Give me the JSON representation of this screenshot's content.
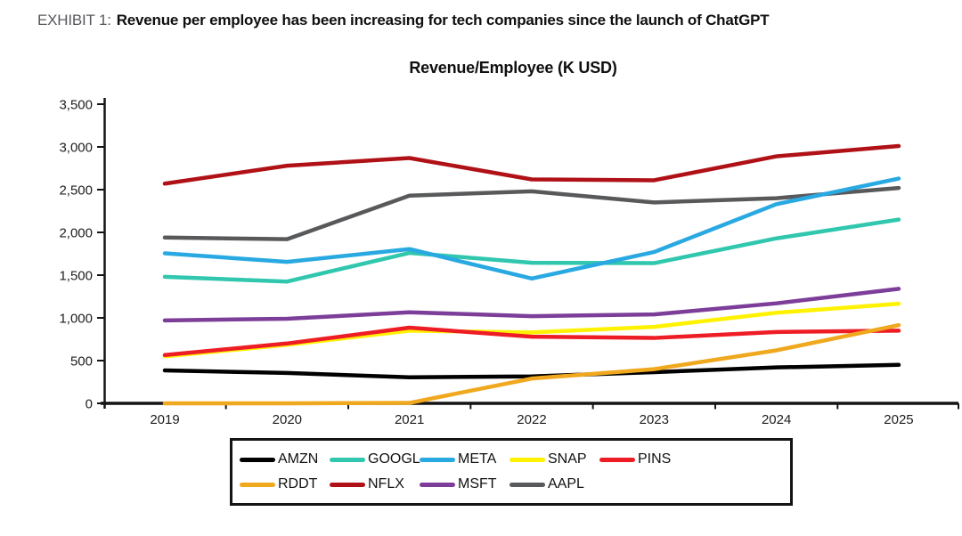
{
  "exhibit": {
    "label": "EXHIBIT 1:",
    "title": "Revenue per employee has been increasing for tech companies since the launch of ChatGPT"
  },
  "chart_data": {
    "type": "line",
    "title": "Revenue/Employee (K USD)",
    "x": [
      2019,
      2020,
      2021,
      2022,
      2023,
      2024,
      2025
    ],
    "ylim": [
      0,
      3500
    ],
    "yticks": [
      0,
      500,
      1000,
      1500,
      2000,
      2500,
      3000,
      3500
    ],
    "grid": false,
    "legend_position": "bottom",
    "legend_rows": [
      5,
      4
    ],
    "series": [
      {
        "name": "AMZN",
        "color": "#000000",
        "values": [
          385,
          355,
          305,
          315,
          365,
          420,
          450
        ]
      },
      {
        "name": "GOOGL",
        "color": "#30c7ae",
        "values": [
          1480,
          1425,
          1760,
          1645,
          1640,
          1930,
          2150
        ]
      },
      {
        "name": "META",
        "color": "#29a9e1",
        "values": [
          1755,
          1655,
          1805,
          1460,
          1770,
          2330,
          2630
        ]
      },
      {
        "name": "SNAP",
        "color": "#fff200",
        "values": [
          550,
          685,
          850,
          830,
          895,
          1060,
          1165
        ]
      },
      {
        "name": "PINS",
        "color": "#ee1c24",
        "values": [
          565,
          700,
          885,
          780,
          765,
          835,
          850
        ]
      },
      {
        "name": "RDDT",
        "color": "#f0a81e",
        "values": [
          0,
          0,
          5,
          290,
          400,
          620,
          915
        ]
      },
      {
        "name": "NFLX",
        "color": "#b01117",
        "values": [
          2570,
          2780,
          2870,
          2620,
          2610,
          2890,
          3010
        ]
      },
      {
        "name": "MSFT",
        "color": "#7c3e98",
        "values": [
          970,
          990,
          1065,
          1020,
          1040,
          1170,
          1340
        ]
      },
      {
        "name": "AAPL",
        "color": "#58595b",
        "values": [
          1940,
          1920,
          2430,
          2480,
          2350,
          2400,
          2520
        ]
      }
    ]
  }
}
